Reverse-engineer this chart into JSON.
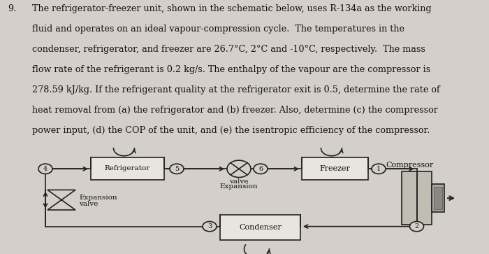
{
  "bg_color": "#d4d0c9",
  "text_color": "#111111",
  "line_color": "#222222",
  "box_face": "#e8e5de",
  "box_edge": "#222222",
  "comp_face": "#c0bdb5",
  "comp_dark": "#888880",
  "title_num": "9.",
  "para_lines": [
    "The refrigerator-freezer unit, shown in the schematic below, uses R-134a as the working",
    "fluid and operates on an ideal vapour-compression cycle.  The temperatures in the",
    "condenser, refrigerator, and freezer are 26.7°C, 2°C and -10°C, respectively.  The mass",
    "flow rate of the refrigerant is 0.2 kg/s. The enthalpy of the vapour are the compressor is",
    "278.59 kJ/kg. If the refrigerant quality at the refrigerator exit is 0.5, determine the rate of",
    "heat removal from (a) the refrigerator and (b) freezer. Also, determine (c) the compressor",
    "power input, (d) the COP of the unit, and (e) the isentropic efficiency of the compressor."
  ],
  "text_fontsize": 9.2,
  "diagram_fontsize": 8.0
}
